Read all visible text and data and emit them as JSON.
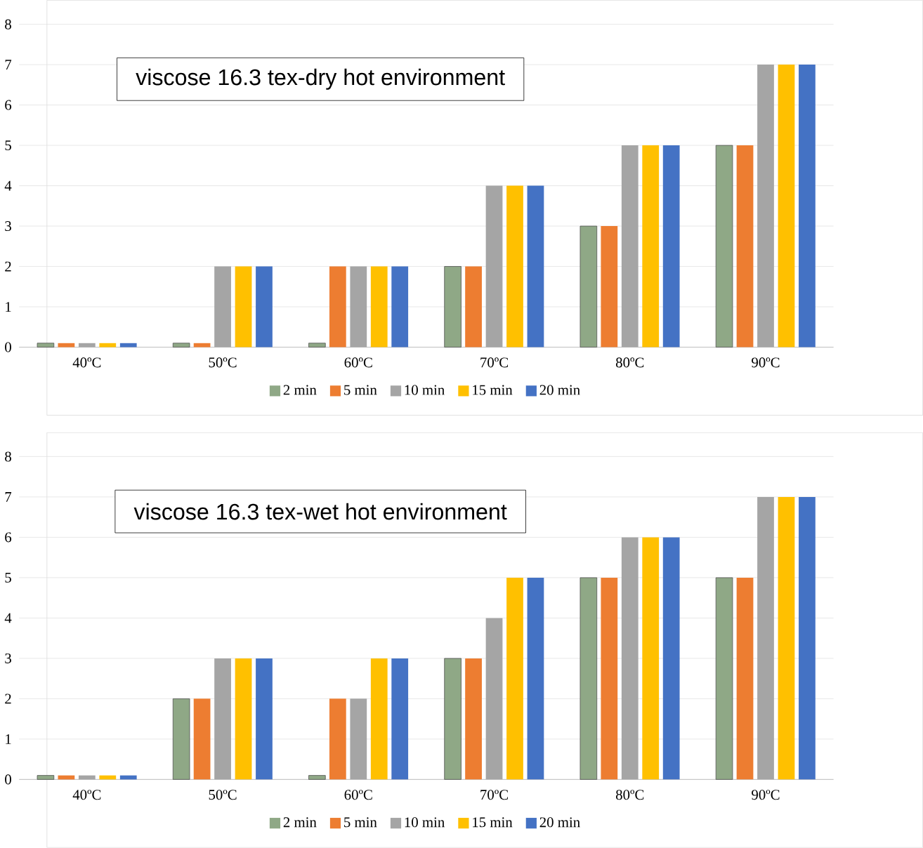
{
  "chart_data": [
    {
      "type": "bar",
      "title": "viscose 16.3 tex-dry hot environment",
      "categories": [
        "40ºC",
        "50ºC",
        "60ºC",
        "70ºC",
        "80ºC",
        "90ºC"
      ],
      "ylim": [
        0,
        8
      ],
      "yticks": [
        0,
        1,
        2,
        3,
        4,
        5,
        6,
        7,
        8
      ],
      "grid": "y",
      "legend": "bottom",
      "series": [
        {
          "name": "2 min",
          "color": "#8fa886",
          "values": [
            0.1,
            0.1,
            0.1,
            2,
            3,
            5
          ]
        },
        {
          "name": "5 min",
          "color": "#ed7d31",
          "values": [
            0.1,
            0.1,
            2,
            2,
            3,
            5
          ]
        },
        {
          "name": "10 min",
          "color": "#a5a5a5",
          "values": [
            0.1,
            2,
            2,
            4,
            5,
            7
          ]
        },
        {
          "name": "15 min",
          "color": "#ffc000",
          "values": [
            0.1,
            2,
            2,
            4,
            5,
            7
          ]
        },
        {
          "name": "20 min",
          "color": "#4472c4",
          "values": [
            0.1,
            2,
            2,
            4,
            5,
            7
          ]
        }
      ]
    },
    {
      "type": "bar",
      "title": "viscose 16.3 tex-wet hot environment",
      "categories": [
        "40ºC",
        "50ºC",
        "60ºC",
        "70ºC",
        "80ºC",
        "90ºC"
      ],
      "ylim": [
        0,
        8
      ],
      "yticks": [
        0,
        1,
        2,
        3,
        4,
        5,
        6,
        7,
        8
      ],
      "grid": "y",
      "legend": "bottom",
      "series": [
        {
          "name": "2 min",
          "color": "#8fa886",
          "values": [
            0.1,
            2,
            0.1,
            3,
            5,
            5
          ]
        },
        {
          "name": "5 min",
          "color": "#ed7d31",
          "values": [
            0.1,
            2,
            2,
            3,
            5,
            5
          ]
        },
        {
          "name": "10 min",
          "color": "#a5a5a5",
          "values": [
            0.1,
            3,
            2,
            4,
            6,
            7
          ]
        },
        {
          "name": "15 min",
          "color": "#ffc000",
          "values": [
            0.1,
            3,
            3,
            5,
            6,
            7
          ]
        },
        {
          "name": "20 min",
          "color": "#4472c4",
          "values": [
            0.1,
            3,
            3,
            5,
            6,
            7
          ]
        }
      ]
    }
  ]
}
